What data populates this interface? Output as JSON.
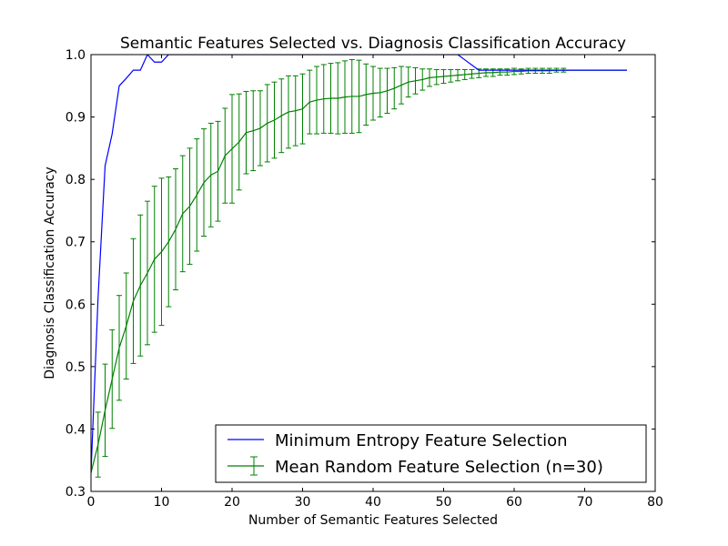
{
  "chart_data": {
    "type": "line",
    "title": "Semantic Features Selected vs. Diagnosis Classification Accuracy",
    "xlabel": "Number of Semantic Features Selected",
    "ylabel": "Diagnosis Classification Accuracy",
    "xlim": [
      0,
      80
    ],
    "ylim": [
      0.3,
      1.0
    ],
    "x_ticks": [
      0,
      10,
      20,
      30,
      40,
      50,
      60,
      70,
      80
    ],
    "y_ticks": [
      0.3,
      0.4,
      0.5,
      0.6,
      0.7,
      0.8,
      0.9,
      1.0
    ],
    "x_tick_labels": [
      "0",
      "10",
      "20",
      "30",
      "40",
      "50",
      "60",
      "70",
      "80"
    ],
    "y_tick_labels": [
      "0.3",
      "0.4",
      "0.5",
      "0.6",
      "0.7",
      "0.8",
      "0.9",
      "1.0"
    ],
    "grid": false,
    "legend_position": "lower-right",
    "series": [
      {
        "name": "Minimum Entropy Feature Selection",
        "color": "#0000ff",
        "points": [
          [
            0,
            0.33
          ],
          [
            1,
            0.61
          ],
          [
            2,
            0.822
          ],
          [
            3,
            0.873
          ],
          [
            4,
            0.95
          ],
          [
            5,
            0.962
          ],
          [
            6,
            0.975
          ],
          [
            7,
            0.975
          ],
          [
            8,
            1.0
          ],
          [
            9,
            0.988
          ],
          [
            10,
            0.988
          ],
          [
            11,
            1.0
          ],
          [
            52,
            1.0
          ],
          [
            55,
            0.975
          ],
          [
            76,
            0.975
          ]
        ]
      },
      {
        "name": "Mean Random Feature Selection (n=30)",
        "color": "#008000",
        "x": [
          0,
          1,
          2,
          3,
          4,
          5,
          6,
          7,
          8,
          9,
          10,
          11,
          12,
          13,
          14,
          15,
          16,
          17,
          18,
          19,
          20,
          21,
          22,
          23,
          24,
          25,
          26,
          27,
          28,
          29,
          30,
          31,
          32,
          33,
          34,
          35,
          36,
          37,
          38,
          39,
          40,
          41,
          42,
          43,
          44,
          45,
          46,
          47,
          48,
          49,
          50,
          51,
          52,
          53,
          54,
          55,
          56,
          57,
          58,
          59,
          60,
          61,
          62,
          63,
          64,
          65,
          66,
          67,
          68,
          69,
          70,
          71,
          72,
          73,
          74,
          75,
          76
        ],
        "y": [
          0.33,
          0.375,
          0.43,
          0.48,
          0.53,
          0.565,
          0.605,
          0.63,
          0.65,
          0.672,
          0.684,
          0.7,
          0.72,
          0.745,
          0.757,
          0.775,
          0.795,
          0.807,
          0.813,
          0.838,
          0.849,
          0.86,
          0.875,
          0.878,
          0.882,
          0.89,
          0.895,
          0.902,
          0.908,
          0.91,
          0.913,
          0.924,
          0.927,
          0.929,
          0.93,
          0.93,
          0.932,
          0.933,
          0.933,
          0.936,
          0.938,
          0.939,
          0.942,
          0.946,
          0.951,
          0.956,
          0.958,
          0.96,
          0.963,
          0.964,
          0.965,
          0.966,
          0.967,
          0.968,
          0.969,
          0.97,
          0.971,
          0.971,
          0.972,
          0.972,
          0.973,
          0.973,
          0.974,
          0.974,
          0.974,
          0.974,
          0.975,
          0.975,
          0.975,
          0.975,
          0.975,
          0.975,
          0.975,
          0.975,
          0.975,
          0.975,
          0.975
        ],
        "err": [
          0.0,
          0.052,
          0.074,
          0.079,
          0.084,
          0.085,
          0.1,
          0.113,
          0.115,
          0.117,
          0.118,
          0.104,
          0.097,
          0.093,
          0.093,
          0.09,
          0.086,
          0.083,
          0.08,
          0.076,
          0.087,
          0.077,
          0.066,
          0.064,
          0.06,
          0.062,
          0.061,
          0.059,
          0.058,
          0.056,
          0.056,
          0.051,
          0.054,
          0.055,
          0.056,
          0.057,
          0.058,
          0.059,
          0.058,
          0.049,
          0.043,
          0.039,
          0.036,
          0.033,
          0.03,
          0.024,
          0.021,
          0.017,
          0.014,
          0.012,
          0.011,
          0.01,
          0.009,
          0.008,
          0.007,
          0.007,
          0.006,
          0.006,
          0.005,
          0.005,
          0.005,
          0.004,
          0.004,
          0.004,
          0.004,
          0.004,
          0.003,
          0.003,
          0.0,
          0.0,
          0.0,
          0.0,
          0.0,
          0.0,
          0.0,
          0.0,
          0.0
        ],
        "errorbar_until_x": 67
      }
    ]
  }
}
